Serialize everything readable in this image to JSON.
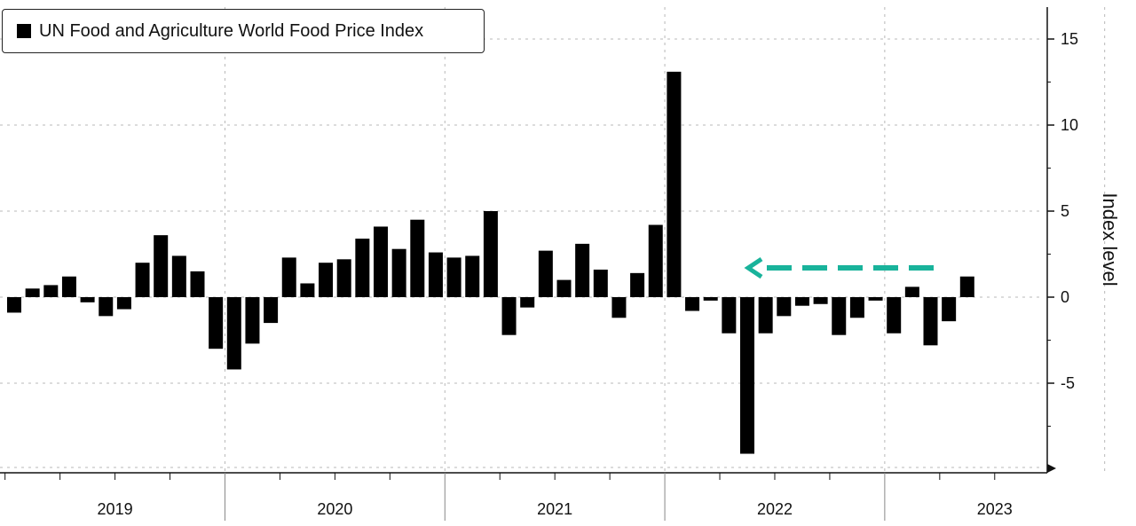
{
  "chart_data": {
    "type": "bar",
    "legend": {
      "label": "UN Food and Agriculture World Food Price Index",
      "position": "top-left"
    },
    "ylabel": "Index level",
    "ylim": [
      -10,
      17
    ],
    "yticks": [
      15,
      10,
      5,
      0,
      -5
    ],
    "x_start": "2019-01",
    "year_labels": [
      "2019",
      "2020",
      "2021",
      "2022",
      "2023"
    ],
    "series": [
      {
        "name": "UN Food and Agriculture World Food Price Index",
        "color": "#000000",
        "values": [
          -0.9,
          0.5,
          0.7,
          1.2,
          -0.3,
          -1.1,
          -0.7,
          2.0,
          3.6,
          2.4,
          1.5,
          -3.0,
          -4.2,
          -2.7,
          -1.5,
          2.3,
          0.8,
          2.0,
          2.2,
          3.4,
          4.1,
          2.8,
          4.5,
          2.6,
          2.3,
          2.4,
          5.0,
          -2.2,
          -0.6,
          2.7,
          1.0,
          3.1,
          1.6,
          -1.2,
          1.4,
          4.2,
          13.1,
          -0.8,
          -0.2,
          -2.1,
          -9.1,
          -2.1,
          -1.1,
          -0.5,
          -0.4,
          -2.2,
          -1.2,
          -0.2,
          -2.1,
          0.6,
          -2.8,
          -1.4,
          1.2
        ]
      }
    ],
    "grid": true,
    "annotation": {
      "type": "dashed-arrow",
      "direction": "left",
      "color": "#19b39b",
      "y_value": 1.2
    }
  }
}
